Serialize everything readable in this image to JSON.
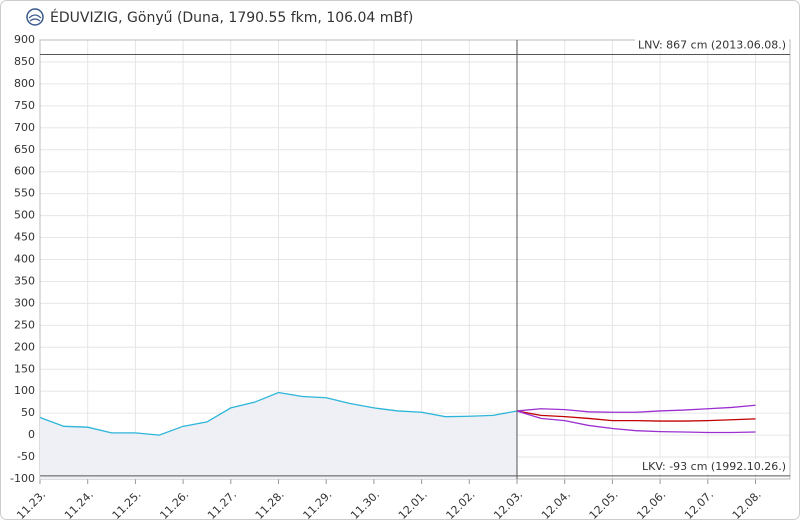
{
  "chart_data": {
    "type": "line",
    "title": "ÉDUVIZIG, Gönyű (Duna, 1790.55 fkm, 106.04 mBf)",
    "categories": [
      "11.23.",
      null,
      "11.24.",
      null,
      "11.25.",
      null,
      "11.26.",
      null,
      "11.27.",
      null,
      "11.28.",
      null,
      "11.29.",
      null,
      "11.30.",
      null,
      "12.01.",
      null,
      "12.02.",
      null,
      "12.03.",
      null,
      "12.04.",
      null,
      "12.05.",
      null,
      "12.06.",
      null,
      "12.07.",
      null,
      "12.08."
    ],
    "series": [
      {
        "color": "#2bb5d8",
        "fill": "#eef0f6",
        "values": [
          40,
          20,
          18,
          5,
          5,
          0,
          20,
          30,
          62,
          75,
          97,
          88,
          85,
          72,
          62,
          55,
          52,
          42,
          43,
          45,
          55,
          null,
          null,
          null,
          null,
          null,
          null,
          null,
          null,
          null,
          null
        ]
      },
      {
        "color": "#c00000",
        "values": [
          null,
          null,
          null,
          null,
          null,
          null,
          null,
          null,
          null,
          null,
          null,
          null,
          null,
          null,
          null,
          null,
          null,
          null,
          null,
          null,
          55,
          45,
          42,
          38,
          33,
          33,
          32,
          32,
          33,
          35,
          37
        ]
      },
      {
        "color": "#9b30d0",
        "values": [
          null,
          null,
          null,
          null,
          null,
          null,
          null,
          null,
          null,
          null,
          null,
          null,
          null,
          null,
          null,
          null,
          null,
          null,
          null,
          null,
          55,
          60,
          58,
          53,
          52,
          52,
          55,
          57,
          60,
          63,
          68
        ]
      },
      {
        "color": "#9b30d0",
        "values": [
          null,
          null,
          null,
          null,
          null,
          null,
          null,
          null,
          null,
          null,
          null,
          null,
          null,
          null,
          null,
          null,
          null,
          null,
          null,
          null,
          55,
          38,
          33,
          22,
          15,
          10,
          8,
          7,
          6,
          6,
          7
        ]
      }
    ],
    "ylim": [
      -100,
      900
    ],
    "yticks": [
      -100,
      -50,
      0,
      50,
      100,
      150,
      200,
      250,
      300,
      350,
      400,
      450,
      500,
      550,
      600,
      650,
      700,
      750,
      800,
      850,
      900
    ],
    "grid": true,
    "reference_lines": [
      {
        "value": 867,
        "label": "LNV: 867 cm (2013.06.08.)"
      },
      {
        "value": -93,
        "label": "LKV: -93 cm (1992.10.26.)"
      }
    ]
  }
}
